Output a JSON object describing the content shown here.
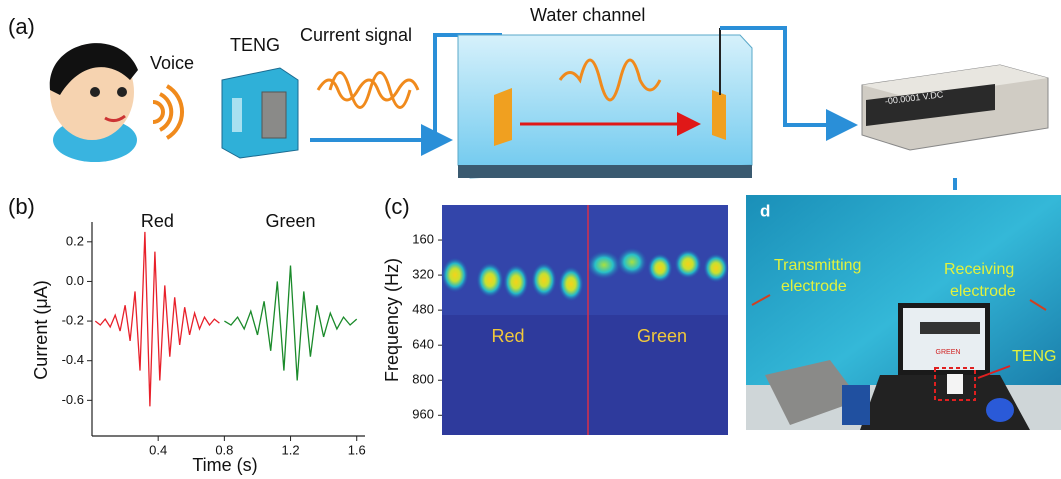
{
  "figure_a": {
    "label": "(a)",
    "voice": "Voice",
    "teng": "TENG",
    "current_signal": "Current signal",
    "water_channel": "Water channel",
    "meter_display": "-00.0001 V.DC"
  },
  "chart_data": {
    "type": "line",
    "panel_label": "(b)",
    "x_label": "Time (s)",
    "y_label": "Current (μA)",
    "xlim": [
      0,
      1.65
    ],
    "xticks": [
      0.4,
      0.8,
      1.2,
      1.6
    ],
    "ylim": [
      -0.78,
      0.3
    ],
    "yticks": [
      0.2,
      {
        "value": 0,
        "label": "0.0"
      },
      -0.2,
      -0.4,
      -0.6
    ],
    "series": [
      {
        "name": "Red",
        "color": "#e8202a",
        "x": [
          0.02,
          0.05,
          0.08,
          0.11,
          0.14,
          0.17,
          0.2,
          0.23,
          0.26,
          0.29,
          0.32,
          0.35,
          0.38,
          0.41,
          0.44,
          0.47,
          0.5,
          0.53,
          0.56,
          0.59,
          0.62,
          0.65,
          0.68,
          0.71,
          0.74,
          0.77
        ],
        "values": [
          -0.2,
          -0.22,
          -0.19,
          -0.23,
          -0.17,
          -0.25,
          -0.12,
          -0.3,
          -0.05,
          -0.45,
          0.25,
          -0.63,
          0.15,
          -0.5,
          -0.02,
          -0.38,
          -0.08,
          -0.32,
          -0.13,
          -0.27,
          -0.16,
          -0.24,
          -0.18,
          -0.22,
          -0.19,
          -0.21
        ]
      },
      {
        "name": "Green",
        "color": "#1a8a2a",
        "x": [
          0.8,
          0.84,
          0.88,
          0.92,
          0.96,
          1.0,
          1.04,
          1.08,
          1.12,
          1.16,
          1.2,
          1.24,
          1.28,
          1.32,
          1.36,
          1.4,
          1.44,
          1.48,
          1.52,
          1.56,
          1.6
        ],
        "values": [
          -0.2,
          -0.22,
          -0.18,
          -0.24,
          -0.15,
          -0.27,
          -0.1,
          -0.35,
          0.0,
          -0.45,
          0.08,
          -0.5,
          -0.05,
          -0.38,
          -0.12,
          -0.28,
          -0.16,
          -0.24,
          -0.18,
          -0.22,
          -0.19
        ]
      }
    ]
  },
  "figure_c": {
    "label": "(c)",
    "y_label": "Frequency (Hz)",
    "ylim": [
      0,
      1050
    ],
    "yticks": [
      160,
      320,
      480,
      640,
      800,
      960
    ],
    "annotations": [
      "Red",
      "Green"
    ]
  },
  "figure_d": {
    "label": "d",
    "transmitting_electrode": [
      "Transmitting",
      "electrode"
    ],
    "receiving_electrode": [
      "Receiving",
      "electrode"
    ],
    "teng": "TENG",
    "screen_text": "GREEN"
  }
}
